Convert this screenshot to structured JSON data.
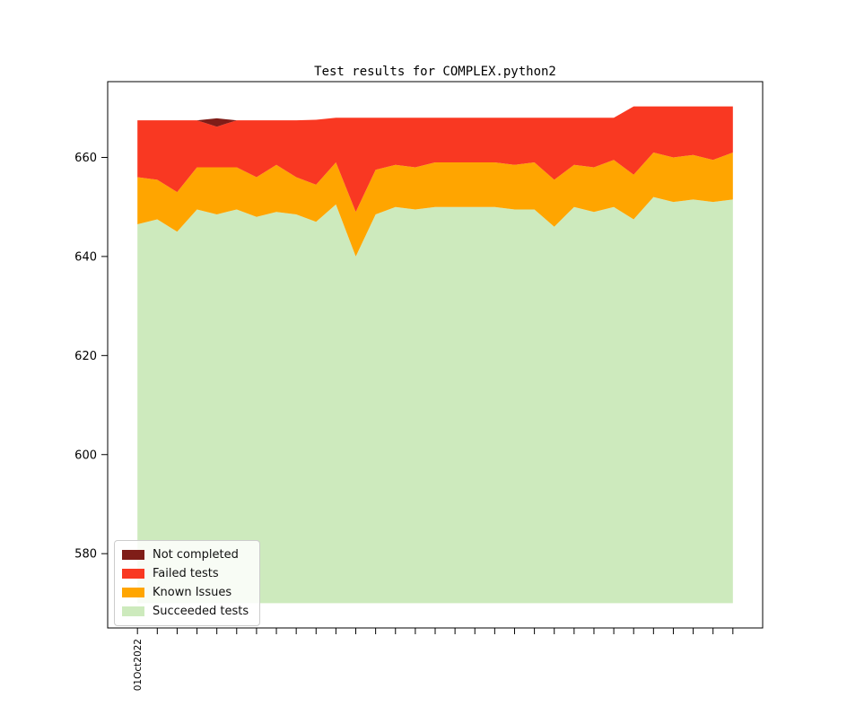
{
  "title": "Test results for COMPLEX.python2",
  "chart_data": {
    "type": "area",
    "stacked": true,
    "title": "Test results for COMPLEX.python2",
    "xlabel": "",
    "ylabel": "",
    "x_tick_count": 31,
    "x_first_tick_label": "01Oct2022",
    "baseline": 570,
    "ylim": [
      565,
      675.3
    ],
    "yticks": [
      580,
      600,
      620,
      640,
      660
    ],
    "grid": false,
    "legend_position": "lower left",
    "series": [
      {
        "name": "Succeeded tests",
        "color": "#CDEABD",
        "cumulative_top": [
          646.5,
          647.5,
          645,
          649.5,
          648.5,
          649.5,
          648,
          649,
          648.5,
          647,
          650.5,
          640,
          648.5,
          650,
          649.5,
          650,
          650,
          650,
          650,
          649.5,
          649.5,
          646,
          650,
          649,
          650,
          647.5,
          652,
          651,
          651.5,
          651,
          651.5
        ]
      },
      {
        "name": "Known Issues",
        "color": "#FFA500",
        "cumulative_top": [
          656,
          655.5,
          653,
          658,
          658,
          658,
          656,
          658.5,
          656,
          654.5,
          659,
          649,
          657.5,
          658.5,
          658,
          659,
          659,
          659,
          659,
          658.5,
          659,
          655.5,
          658.5,
          658,
          659.5,
          656.5,
          661,
          660,
          660.5,
          659.5,
          661
        ]
      },
      {
        "name": "Failed tests",
        "color": "#F93822",
        "cumulative_top": [
          667.5,
          667.5,
          667.5,
          667.5,
          666.2,
          667.5,
          667.5,
          667.5,
          667.5,
          667.6,
          668,
          668,
          668,
          668,
          668,
          668,
          668,
          668,
          668,
          668,
          668,
          668,
          668,
          668,
          668,
          670.3,
          670.3,
          670.3,
          670.3,
          670.3,
          670.3
        ]
      },
      {
        "name": "Not completed",
        "color": "#7F1D18",
        "cumulative_top": [
          667.5,
          667.5,
          667.5,
          667.5,
          667.9,
          667.5,
          667.5,
          667.5,
          667.5,
          667.6,
          668,
          668,
          668,
          668,
          668,
          668,
          668,
          668,
          668,
          668,
          668,
          668,
          668,
          668,
          668,
          670.3,
          670.3,
          670.3,
          670.3,
          670.3,
          670.3
        ]
      }
    ],
    "legend": {
      "entries": [
        {
          "label": "Not completed",
          "color": "#7F1D18"
        },
        {
          "label": "Failed tests",
          "color": "#F93822"
        },
        {
          "label": "Known Issues",
          "color": "#FFA500"
        },
        {
          "label": "Succeeded tests",
          "color": "#CDEABD"
        }
      ]
    }
  }
}
